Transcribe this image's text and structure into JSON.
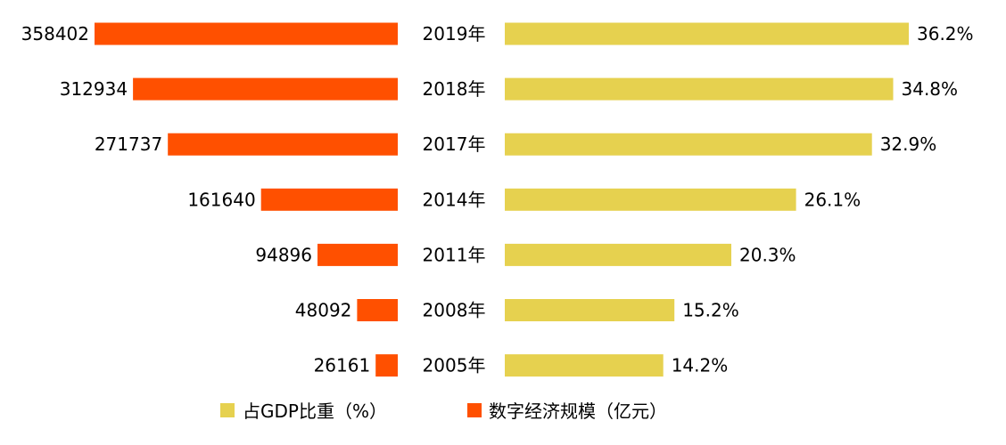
{
  "chart_data": {
    "type": "bar",
    "categories": [
      "2019年",
      "2018年",
      "2017年",
      "2014年",
      "2011年",
      "2008年",
      "2005年"
    ],
    "series": [
      {
        "name": "数字经济规模（亿元）",
        "values": [
          358402,
          312934,
          271737,
          161640,
          94896,
          48092,
          26161
        ],
        "value_labels": [
          "358402",
          "312934",
          "271737",
          "161640",
          "94896",
          "48092",
          "26161"
        ],
        "color": "#FF5000",
        "direction": "left"
      },
      {
        "name": "占GDP比重（%）",
        "values": [
          36.2,
          34.8,
          32.9,
          26.1,
          20.3,
          15.2,
          14.2
        ],
        "value_labels": [
          "36.2%",
          "34.8%",
          "32.9%",
          "26.1%",
          "20.3%",
          "15.2%",
          "14.2%"
        ],
        "color": "#E6D14F",
        "direction": "right"
      }
    ],
    "legend": [
      {
        "label": "占GDP比重（%）",
        "color": "#E6D14F"
      },
      {
        "label": "数字经济规模（亿元）",
        "color": "#FF5000"
      }
    ],
    "legend_position": "bottom",
    "grid": false
  }
}
